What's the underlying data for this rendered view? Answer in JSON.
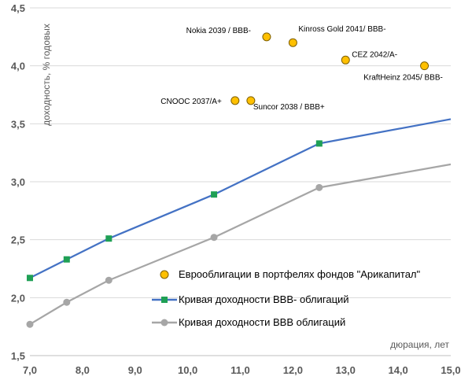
{
  "chart_data": {
    "type": "line",
    "xlabel": "дюрация, лет",
    "ylabel": "доходность, % годовых",
    "xlim": [
      7.0,
      15.0
    ],
    "ylim": [
      1.5,
      4.5
    ],
    "xticks": [
      "7,0",
      "8,0",
      "9,0",
      "10,0",
      "11,0",
      "12,0",
      "13,0",
      "14,0",
      "15,0"
    ],
    "yticks": [
      "1,5",
      "2,0",
      "2,5",
      "3,0",
      "3,5",
      "4,0",
      "4,5"
    ],
    "grid": "horizontal",
    "legend_position": "bottom-right",
    "series": [
      {
        "name": "Еврооблигации в портфелях фондов \"Арикапитал\"",
        "kind": "scatter",
        "color": "#FFC000",
        "points": [
          {
            "x": 11.5,
            "y": 4.25,
            "label": "Nokia 2039 / BBB-"
          },
          {
            "x": 12.0,
            "y": 4.2,
            "label": "Kinross Gold 2041/ BBB-"
          },
          {
            "x": 13.0,
            "y": 4.05,
            "label": "CEZ 2042/A-"
          },
          {
            "x": 14.5,
            "y": 4.0,
            "label": "KraftHeinz 2045/ BBB-"
          },
          {
            "x": 10.9,
            "y": 3.7,
            "label": "CNOOC 2037/A+"
          },
          {
            "x": 11.2,
            "y": 3.7,
            "label": "Suncor 2038 / BBB+"
          }
        ]
      },
      {
        "name": "Кривая доходности BBB- облигаций",
        "kind": "line",
        "color": "#4472C4",
        "marker_color": "#1FA055",
        "x": [
          7.0,
          7.7,
          8.5,
          10.5,
          12.5,
          15.0
        ],
        "y": [
          2.17,
          2.33,
          2.51,
          2.89,
          3.33,
          3.54
        ],
        "marker_count": 5
      },
      {
        "name": "Кривая доходности BBB облигаций",
        "kind": "line",
        "color": "#A6A6A6",
        "marker_color": "#A6A6A6",
        "x": [
          7.0,
          7.7,
          8.5,
          10.5,
          12.5,
          15.0
        ],
        "y": [
          1.77,
          1.96,
          2.15,
          2.52,
          2.95,
          3.15
        ],
        "marker_count": 5
      }
    ]
  }
}
